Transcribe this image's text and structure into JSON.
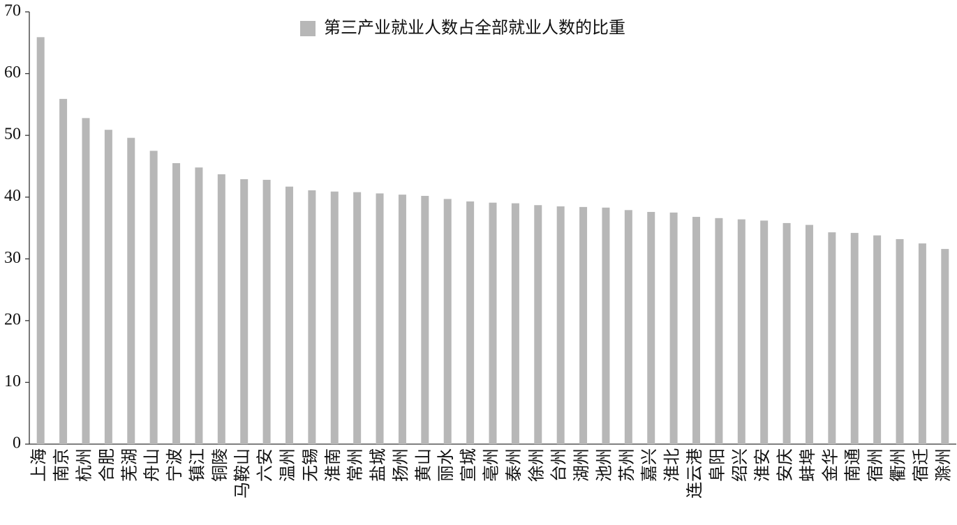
{
  "chart_data": {
    "type": "bar",
    "categories": [
      "上海",
      "南京",
      "杭州",
      "合肥",
      "芜湖",
      "舟山",
      "宁波",
      "镇江",
      "铜陵",
      "马鞍山",
      "六安",
      "温州",
      "无锡",
      "淮南",
      "常州",
      "盐城",
      "扬州",
      "黄山",
      "丽水",
      "宣城",
      "亳州",
      "泰州",
      "徐州",
      "台州",
      "湖州",
      "池州",
      "苏州",
      "嘉兴",
      "淮北",
      "连云港",
      "阜阳",
      "绍兴",
      "淮安",
      "安庆",
      "蚌埠",
      "金华",
      "南通",
      "宿州",
      "衢州",
      "宿迁",
      "滁州"
    ],
    "series": [
      {
        "name": "第三产业就业人数占全部就业人数的比重",
        "color": "#b7b7b7",
        "values": [
          65.9,
          55.9,
          52.8,
          50.9,
          49.6,
          47.5,
          45.5,
          44.8,
          43.7,
          42.9,
          42.8,
          41.7,
          41.1,
          40.9,
          40.8,
          40.6,
          40.4,
          40.2,
          39.7,
          39.3,
          39.1,
          39.0,
          38.7,
          38.5,
          38.4,
          38.3,
          37.9,
          37.6,
          37.5,
          36.8,
          36.6,
          36.4,
          36.2,
          35.8,
          35.5,
          34.3,
          34.2,
          33.8,
          33.2,
          32.5,
          31.6
        ]
      }
    ],
    "ylim": [
      0,
      70
    ],
    "yticks": [
      0,
      10,
      20,
      30,
      40,
      50,
      60,
      70
    ],
    "grid": false,
    "legend": "top"
  }
}
